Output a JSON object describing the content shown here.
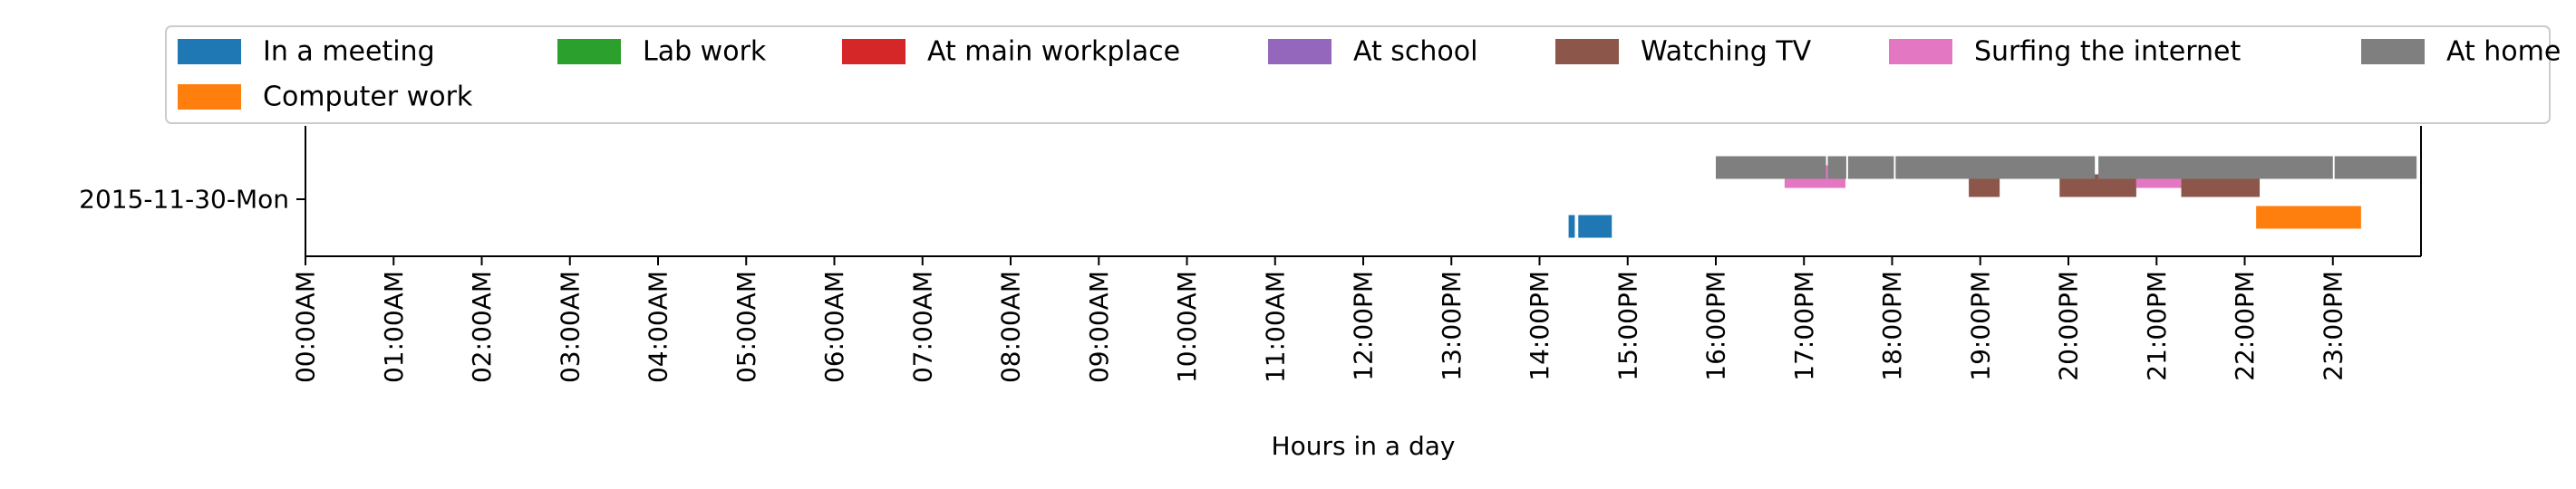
{
  "chart_data": {
    "type": "timeline",
    "xlabel": "Hours in a day",
    "ylabel": "",
    "xlim": [
      0,
      24
    ],
    "x_ticks": [
      {
        "hour": 0,
        "label": "00:00AM"
      },
      {
        "hour": 1,
        "label": "01:00AM"
      },
      {
        "hour": 2,
        "label": "02:00AM"
      },
      {
        "hour": 3,
        "label": "03:00AM"
      },
      {
        "hour": 4,
        "label": "04:00AM"
      },
      {
        "hour": 5,
        "label": "05:00AM"
      },
      {
        "hour": 6,
        "label": "06:00AM"
      },
      {
        "hour": 7,
        "label": "07:00AM"
      },
      {
        "hour": 8,
        "label": "08:00AM"
      },
      {
        "hour": 9,
        "label": "09:00AM"
      },
      {
        "hour": 10,
        "label": "10:00AM"
      },
      {
        "hour": 11,
        "label": "11:00AM"
      },
      {
        "hour": 12,
        "label": "12:00PM"
      },
      {
        "hour": 13,
        "label": "13:00PM"
      },
      {
        "hour": 14,
        "label": "14:00PM"
      },
      {
        "hour": 15,
        "label": "15:00PM"
      },
      {
        "hour": 16,
        "label": "16:00PM"
      },
      {
        "hour": 17,
        "label": "17:00PM"
      },
      {
        "hour": 18,
        "label": "18:00PM"
      },
      {
        "hour": 19,
        "label": "19:00PM"
      },
      {
        "hour": 20,
        "label": "20:00PM"
      },
      {
        "hour": 21,
        "label": "21:00PM"
      },
      {
        "hour": 22,
        "label": "22:00PM"
      },
      {
        "hour": 23,
        "label": "23:00PM"
      }
    ],
    "y_categories": [
      "2015-11-30-Mon"
    ],
    "legend_position": "top",
    "series": [
      {
        "name": "In a meeting",
        "color": "#1f77b4",
        "offset": -0.3,
        "segments": [
          [
            14.33,
            14.4
          ],
          [
            14.44,
            14.82
          ]
        ]
      },
      {
        "name": "Computer work",
        "color": "#ff7f0e",
        "offset": -0.2,
        "segments": [
          [
            22.13,
            23.32
          ]
        ]
      },
      {
        "name": "Lab work",
        "color": "#2ca02c",
        "offset": -0.1,
        "segments": []
      },
      {
        "name": "At main workplace",
        "color": "#d62728",
        "offset": 0.0,
        "segments": []
      },
      {
        "name": "At school",
        "color": "#9467bd",
        "offset": 0.1,
        "segments": []
      },
      {
        "name": "Watching TV",
        "color": "#8c564b",
        "offset": 0.15,
        "segments": [
          [
            18.87,
            19.22
          ],
          [
            19.9,
            20.77
          ],
          [
            21.28,
            22.17
          ]
        ]
      },
      {
        "name": "Surfing the internet",
        "color": "#e377c2",
        "offset": 0.25,
        "segments": [
          [
            16.78,
            17.47
          ],
          [
            20.77,
            21.28
          ]
        ]
      },
      {
        "name": "At home",
        "color": "#7f7f7f",
        "offset": 0.35,
        "segments": [
          [
            16.0,
            17.25
          ],
          [
            17.27,
            17.48
          ],
          [
            17.5,
            18.02
          ],
          [
            18.04,
            20.3
          ],
          [
            20.34,
            23.0
          ],
          [
            23.02,
            23.95
          ]
        ]
      }
    ]
  }
}
